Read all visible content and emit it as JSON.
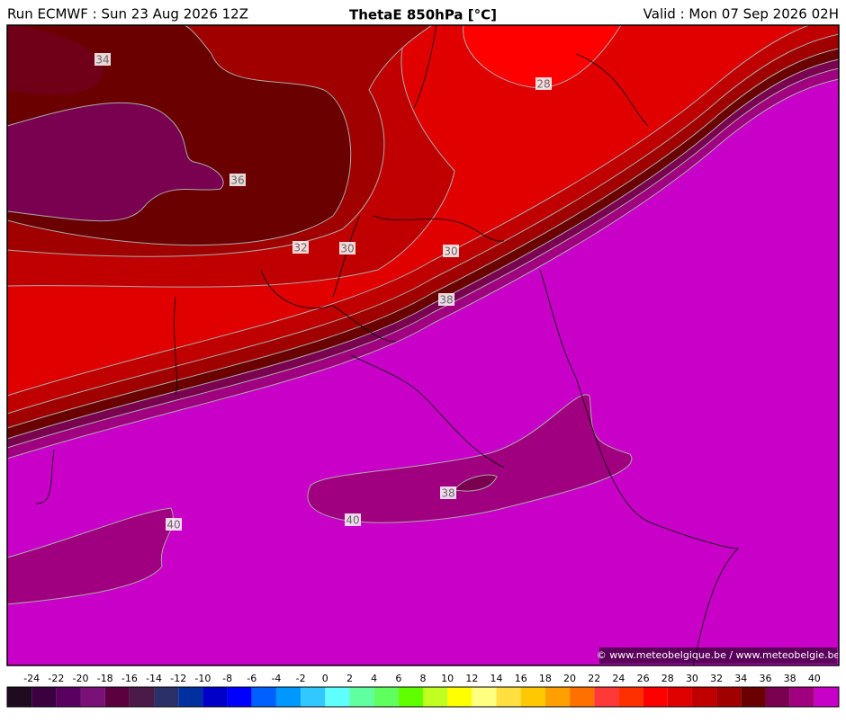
{
  "header": {
    "run": "Run ECMWF : Sun 23 Aug 2026 12Z",
    "title": "ThetaE 850hPa [°C]",
    "valid": "Valid : Mon 07 Sep 2026 02H"
  },
  "map": {
    "contour_labels": [
      "34",
      "28",
      "36",
      "32",
      "30",
      "30",
      "38",
      "38",
      "40",
      "40"
    ],
    "copyright": "© www.meteobelgique.be / www.meteobelgie.be"
  },
  "colorbar": {
    "labels": [
      -24,
      -22,
      -20,
      -18,
      -16,
      -14,
      -12,
      -10,
      -8,
      -6,
      -4,
      -2,
      0,
      2,
      4,
      6,
      8,
      10,
      12,
      14,
      16,
      18,
      20,
      22,
      24,
      26,
      28,
      30,
      32,
      34,
      36,
      38,
      40
    ],
    "colors": [
      "#200a20",
      "#3a0040",
      "#5a0060",
      "#7a1078",
      "#5c0040",
      "#4a1a48",
      "#2c3068",
      "#0030a0",
      "#0000c8",
      "#0000ff",
      "#0060ff",
      "#0098ff",
      "#30c8ff",
      "#60ffff",
      "#60ffa0",
      "#60ff60",
      "#60ff00",
      "#c0ff20",
      "#ffff00",
      "#ffff80",
      "#ffe040",
      "#ffc800",
      "#ffa000",
      "#ff7000",
      "#ff3838",
      "#ff3000",
      "#ff0000",
      "#e00000",
      "#c00000",
      "#a00000",
      "#6a0000",
      "#7a0050",
      "#a00080",
      "#c800c8"
    ]
  }
}
